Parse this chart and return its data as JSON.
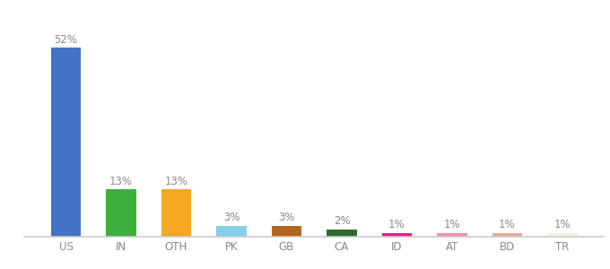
{
  "categories": [
    "US",
    "IN",
    "OTH",
    "PK",
    "GB",
    "CA",
    "ID",
    "AT",
    "BD",
    "TR"
  ],
  "values": [
    52,
    13,
    13,
    3,
    3,
    2,
    1,
    1,
    1,
    1
  ],
  "bar_colors": [
    "#4472c4",
    "#3dae3d",
    "#f5a623",
    "#87ceeb",
    "#b5651d",
    "#2d6a2d",
    "#e91e8c",
    "#f48fb1",
    "#e8a898",
    "#f5f0dc"
  ],
  "label_fontsize": 8.5,
  "tick_fontsize": 8.5,
  "ylim": [
    0,
    60
  ],
  "bar_width": 0.55,
  "label_color": "#888888",
  "tick_color": "#888888",
  "spine_color": "#cccccc",
  "background_color": "#ffffff"
}
